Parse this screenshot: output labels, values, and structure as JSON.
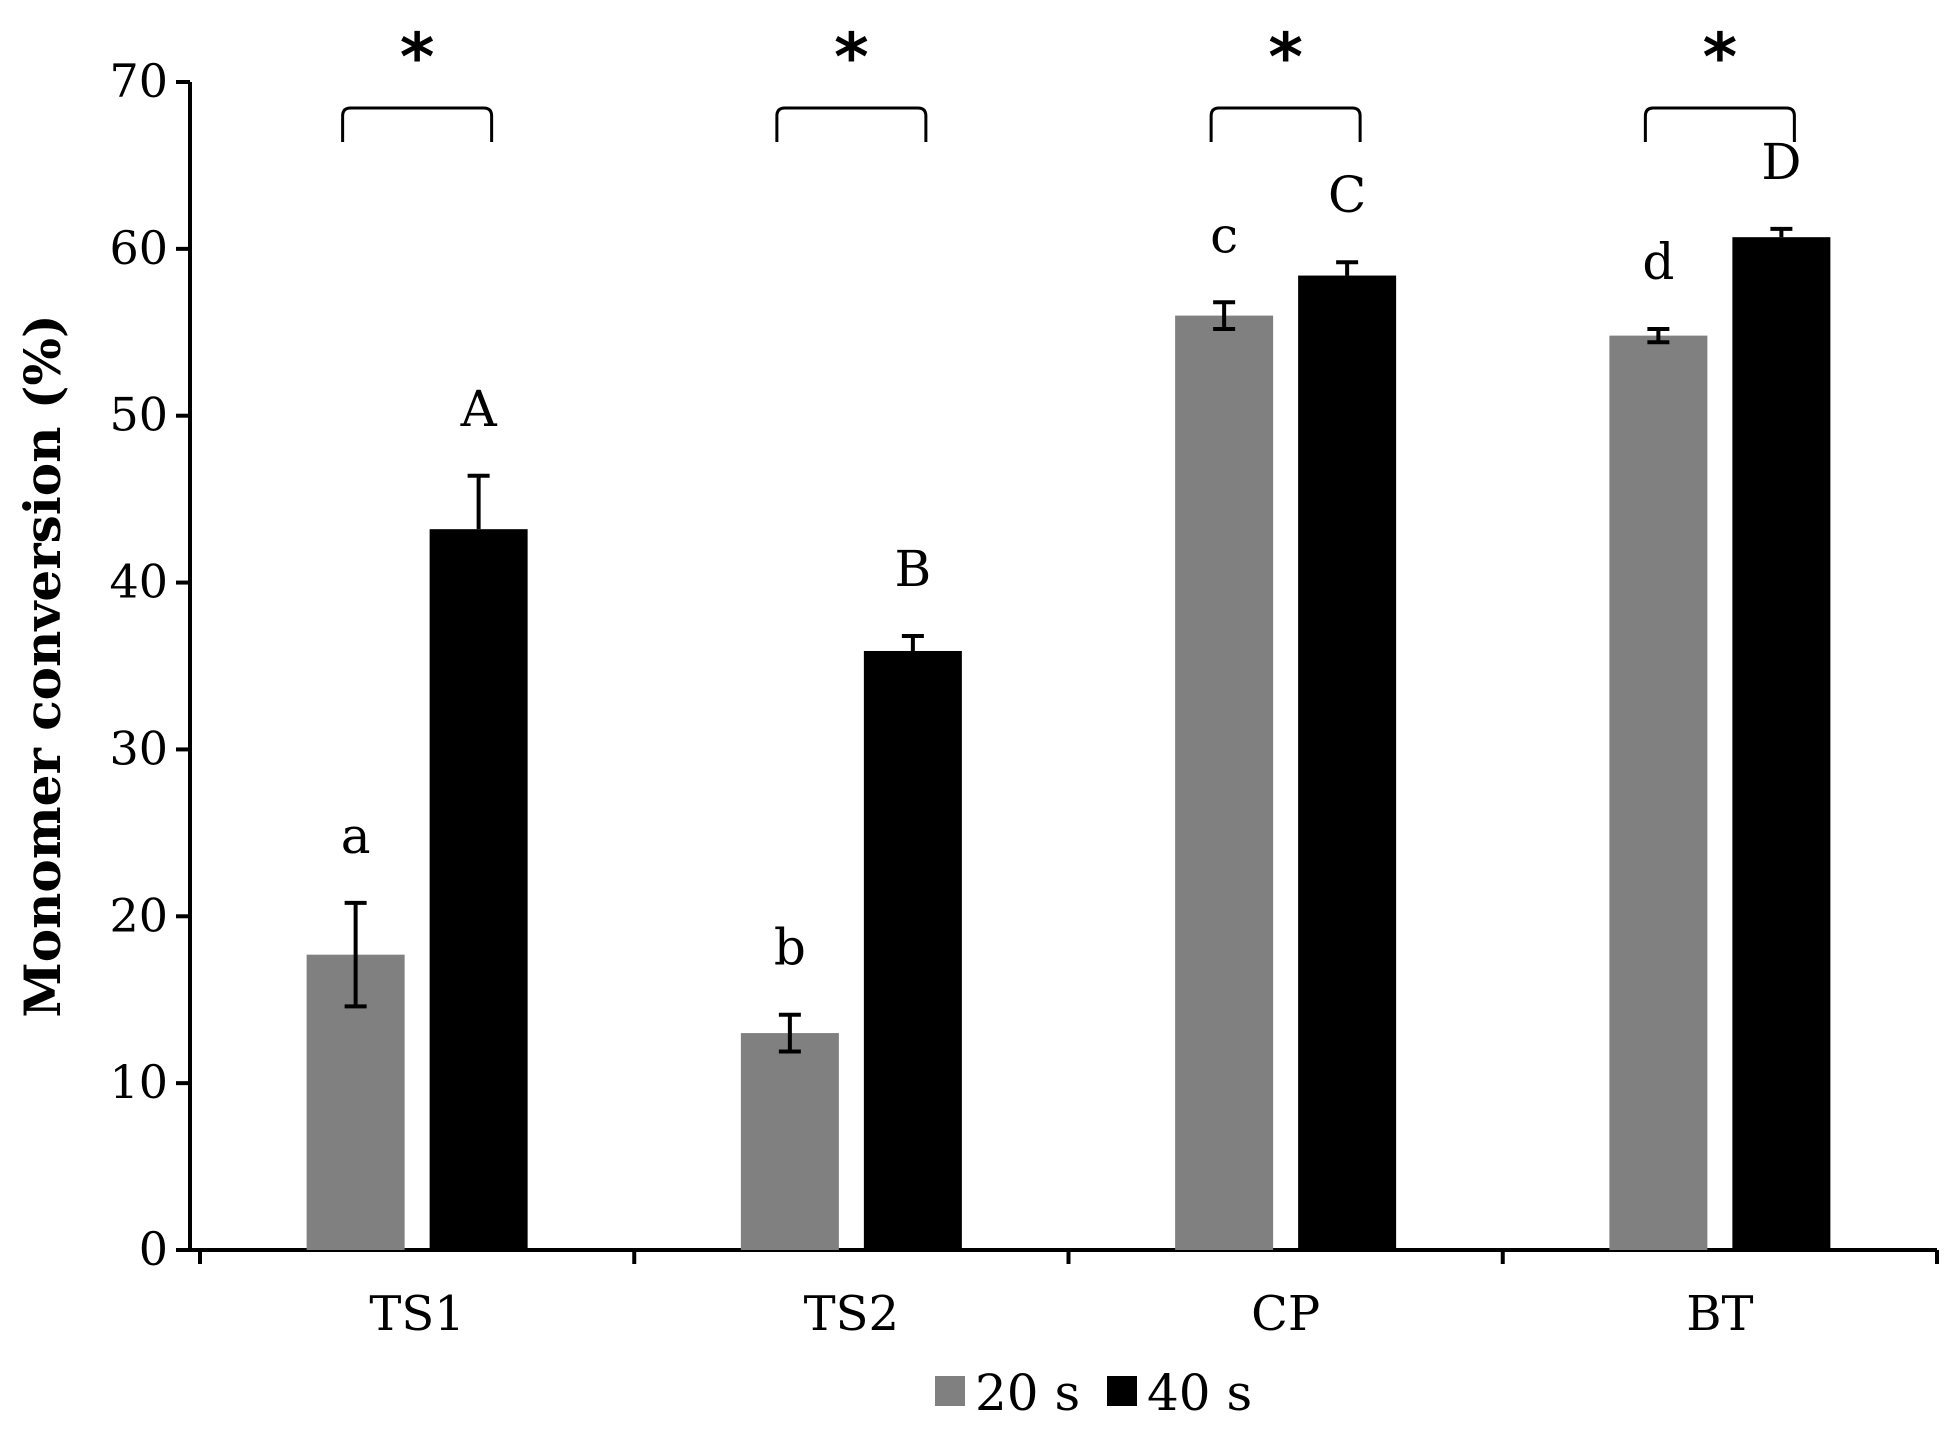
{
  "chart_data": {
    "type": "bar",
    "title": "",
    "xlabel": "",
    "ylabel": "Monomer conversion (%)",
    "ylim": [
      0,
      70
    ],
    "yticks": [
      0,
      10,
      20,
      30,
      40,
      50,
      60,
      70
    ],
    "categories": [
      "TS1",
      "TS2",
      "CP",
      "BT"
    ],
    "series": [
      {
        "name": "20 s",
        "color": "#808080",
        "values": [
          17.7,
          13.0,
          56.0,
          54.8
        ],
        "errors": [
          3.1,
          1.1,
          0.8,
          0.4
        ],
        "letters": [
          "a",
          "b",
          "c",
          "d"
        ]
      },
      {
        "name": "40 s",
        "color": "#000000",
        "values": [
          43.2,
          35.9,
          58.4,
          60.7
        ],
        "errors": [
          3.2,
          0.9,
          0.8,
          0.5
        ],
        "letters": [
          "A",
          "B",
          "C",
          "D"
        ]
      }
    ],
    "significance": [
      "*",
      "*",
      "*",
      "*"
    ],
    "legend": {
      "position": "bottom-center",
      "labels": [
        "20 s",
        "40 s"
      ]
    },
    "grid": false
  }
}
